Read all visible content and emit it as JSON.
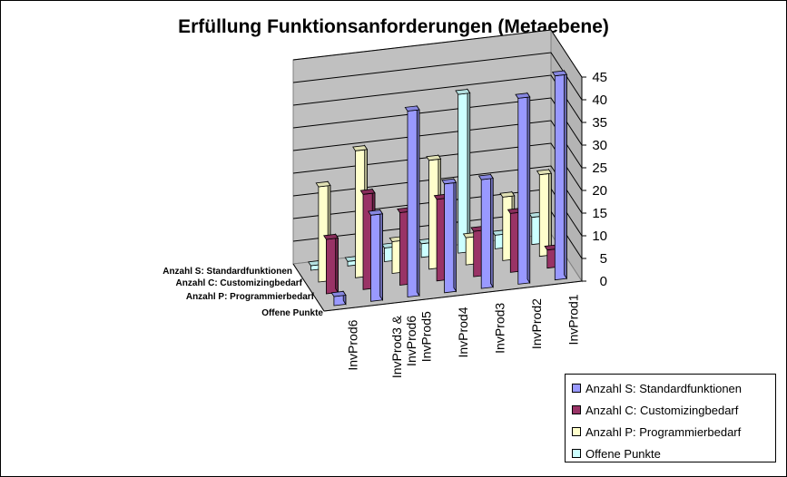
{
  "chart_data": {
    "type": "bar",
    "title": "Erfüllung Funktionsanforderungen (Metaebene)",
    "categories": [
      "InvProd6",
      "InvProd3 & InvProd6",
      "InvProd5",
      "InvProd4",
      "InvProd3",
      "InvProd2",
      "InvProd1"
    ],
    "category_lines": [
      [
        "InvProd6"
      ],
      [
        "InvProd3 &",
        "InvProd6"
      ],
      [
        "InvProd5"
      ],
      [
        "InvProd4"
      ],
      [
        "InvProd3"
      ],
      [
        "InvProd2"
      ],
      [
        "InvProd1"
      ]
    ],
    "series": [
      {
        "name": "Anzahl S: Standardfunktionen",
        "color": "#9999ff",
        "values": [
          2,
          19,
          41,
          24,
          24,
          41,
          45
        ]
      },
      {
        "name": "Anzahl C: Customizingbedarf",
        "color": "#993366",
        "values": [
          12,
          21,
          16,
          18,
          10,
          13,
          4
        ]
      },
      {
        "name": "Anzahl P: Programmierbedarf",
        "color": "#ffffcc",
        "values": [
          21,
          28,
          7,
          24,
          6,
          14,
          18
        ]
      },
      {
        "name": "Offene Punkte",
        "color": "#ccffff",
        "values": [
          1,
          1,
          3,
          3,
          35,
          3,
          6
        ]
      }
    ],
    "ylim": [
      0,
      45
    ],
    "yticks": [
      0,
      5,
      10,
      15,
      20,
      25,
      30,
      35,
      40,
      45
    ],
    "grid": true,
    "legend_position": "bottom-right"
  }
}
